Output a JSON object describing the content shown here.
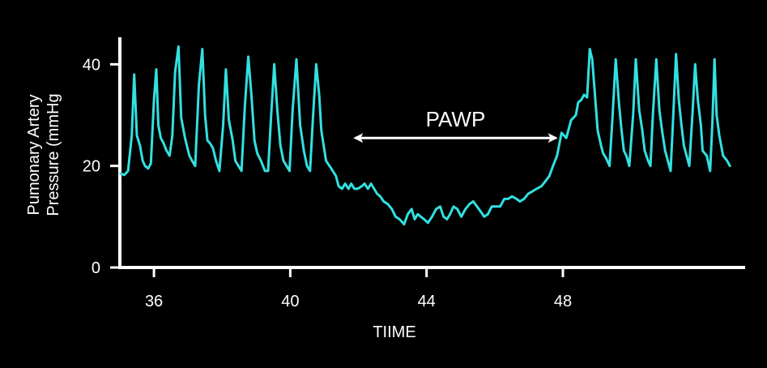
{
  "chart_data": {
    "type": "line",
    "title": "",
    "xlabel": "TIIME",
    "ylabel_lines": [
      "Pumonary Artery",
      "Pressure (mmHg"
    ],
    "xlim": [
      35,
      53.3
    ],
    "ylim": [
      0,
      45
    ],
    "xticks": [
      36,
      40,
      44,
      48
    ],
    "yticks": [
      0,
      20,
      40
    ],
    "grid": false,
    "legend": "none",
    "annotation": {
      "text": "PAWP",
      "x_from": 41.9,
      "x_to": 47.8,
      "y": 25.5
    },
    "colors": {
      "background": "#000000",
      "axis": "#ffffff",
      "trace": "#33e0e0",
      "text": "#ffffff"
    },
    "series": [
      {
        "x": [
          35.02,
          35.13,
          35.24,
          35.35,
          35.42,
          35.5,
          35.59,
          35.67,
          35.74,
          35.83,
          35.91,
          36.0,
          36.07,
          36.13,
          36.2,
          36.28,
          36.37,
          36.46,
          36.54,
          36.62,
          36.72,
          36.8,
          36.91,
          37.04,
          37.12,
          37.21,
          37.32,
          37.42,
          37.5,
          37.57,
          37.64,
          37.73,
          37.82,
          37.92,
          38.03,
          38.11,
          38.2,
          38.31,
          38.39,
          38.48,
          38.57,
          38.67,
          38.77,
          38.86,
          38.95,
          39.03,
          39.14,
          39.26,
          39.35,
          39.44,
          39.53,
          39.62,
          39.71,
          39.8,
          39.89,
          39.98,
          40.07,
          40.18,
          40.29,
          40.4,
          40.49,
          40.58,
          40.67,
          40.76,
          40.85,
          40.91,
          41.05,
          41.2,
          41.34,
          41.42,
          41.52,
          41.61,
          41.71,
          41.79,
          41.88,
          41.98,
          42.1,
          42.18,
          42.28,
          42.37,
          42.46,
          42.55,
          42.64,
          42.74,
          42.86,
          42.98,
          43.09,
          43.21,
          43.34,
          43.45,
          43.56,
          43.65,
          43.74,
          43.83,
          43.93,
          44.04,
          44.16,
          44.28,
          44.4,
          44.5,
          44.6,
          44.69,
          44.79,
          44.9,
          45.02,
          45.14,
          45.26,
          45.37,
          45.48,
          45.59,
          45.69,
          45.8,
          45.91,
          46.04,
          46.16,
          46.28,
          46.39,
          46.51,
          46.64,
          46.74,
          46.86,
          46.98,
          47.11,
          47.23,
          47.37,
          47.49,
          47.6,
          47.71,
          47.83,
          47.96,
          48.1,
          48.24,
          48.38,
          48.45,
          48.54,
          48.62,
          48.71,
          48.79,
          48.86,
          48.93,
          49.02,
          49.12,
          49.18,
          49.27,
          49.37,
          49.46,
          49.55,
          49.65,
          49.72,
          49.79,
          49.86,
          49.95,
          50.06,
          50.14,
          50.24,
          50.33,
          50.4,
          50.5,
          50.57,
          50.64,
          50.74,
          50.83,
          50.91,
          51.0,
          51.08,
          51.16,
          51.24,
          51.32,
          51.4,
          51.48,
          51.55,
          51.63,
          51.71,
          51.8,
          51.88,
          51.96,
          52.05,
          52.1,
          52.22,
          52.32,
          52.39,
          52.45,
          52.51,
          52.59,
          52.7,
          52.82,
          52.9
        ],
        "y": [
          18.5,
          18.2,
          19.0,
          26.0,
          38.0,
          26.0,
          24.0,
          21.0,
          20.0,
          19.5,
          20.5,
          33.0,
          39.0,
          28.0,
          25.5,
          24.5,
          23.0,
          22.0,
          26.0,
          38.5,
          43.5,
          29.5,
          25.5,
          22.0,
          21.0,
          20.0,
          36.0,
          43.0,
          30.0,
          25.0,
          24.5,
          23.5,
          21.0,
          19.0,
          28.0,
          39.0,
          29.0,
          25.0,
          21.0,
          20.0,
          19.0,
          32.0,
          41.5,
          34.0,
          25.0,
          22.5,
          21.0,
          19.0,
          19.0,
          30.0,
          40.0,
          31.0,
          24.0,
          21.0,
          20.0,
          19.0,
          31.0,
          41.0,
          28.0,
          23.0,
          20.0,
          19.0,
          30.0,
          40.0,
          34.0,
          27.0,
          21.0,
          19.5,
          18.0,
          16.0,
          15.5,
          16.5,
          15.5,
          16.5,
          15.5,
          15.5,
          16.0,
          16.5,
          15.5,
          16.5,
          15.5,
          14.5,
          14.0,
          13.0,
          12.5,
          11.5,
          10.0,
          9.5,
          8.5,
          10.5,
          11.5,
          9.5,
          10.5,
          10.0,
          9.5,
          8.8,
          10.0,
          11.5,
          12.0,
          10.0,
          9.5,
          10.5,
          12.0,
          11.5,
          10.0,
          11.5,
          12.5,
          13.0,
          12.0,
          11.0,
          10.0,
          10.5,
          12.0,
          12.0,
          12.0,
          13.5,
          13.5,
          14.0,
          13.5,
          13.0,
          13.5,
          14.5,
          15.0,
          15.5,
          16.0,
          17.0,
          18.0,
          20.0,
          22.0,
          26.5,
          25.5,
          29.0,
          30.0,
          32.5,
          33.0,
          34.0,
          33.5,
          43.0,
          41.0,
          35.0,
          27.0,
          24.0,
          22.5,
          21.5,
          20.0,
          30.0,
          41.0,
          32.0,
          27.0,
          23.0,
          22.0,
          20.0,
          30.0,
          41.0,
          31.0,
          27.0,
          23.0,
          21.0,
          20.0,
          30.0,
          41.0,
          31.0,
          27.0,
          23.0,
          21.0,
          19.0,
          30.0,
          42.0,
          33.0,
          28.0,
          24.0,
          22.0,
          20.0,
          30.0,
          40.0,
          33.0,
          28.0,
          23.0,
          22.0,
          19.0,
          29.0,
          41.0,
          30.0,
          26.0,
          22.0,
          21.0,
          20.0
        ]
      }
    ]
  }
}
